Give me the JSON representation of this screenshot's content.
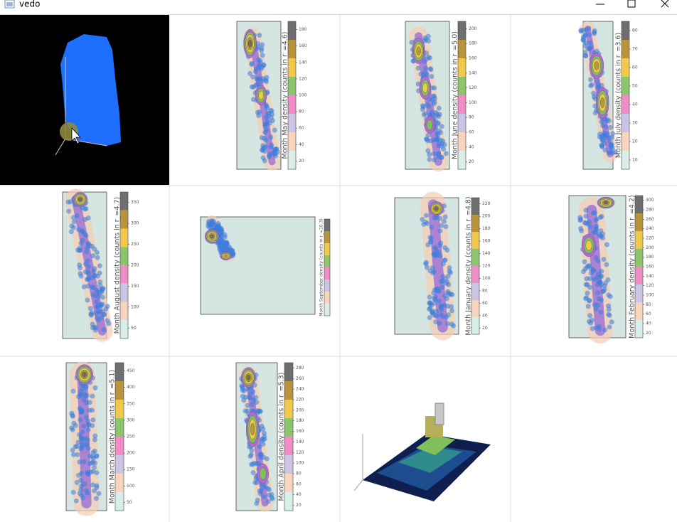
{
  "window": {
    "title": "vedo"
  },
  "panels": [
    {
      "colorbar_title": "Month May density (counts in r_=4.6)",
      "ticks": [
        "180",
        "160",
        "140",
        "120",
        "100",
        "80",
        "60",
        "40",
        "20"
      ]
    },
    {
      "colorbar_title": "Month June density (counts in r_=5.0)",
      "ticks": [
        "200",
        "180",
        "160",
        "140",
        "120",
        "100",
        "80",
        "60",
        "40",
        "20"
      ]
    },
    {
      "colorbar_title": "Month July density (counts in r_=3.6)",
      "ticks": [
        "80",
        "70",
        "60",
        "50",
        "40",
        "30",
        "20",
        "10"
      ]
    },
    {
      "colorbar_title": "Month August density (counts in r_=4.7)",
      "ticks": [
        "350",
        "300",
        "250",
        "200",
        "150",
        "100",
        "50"
      ]
    },
    {
      "colorbar_title": "Month September density (counts in r_=10.3)",
      "ticks": []
    },
    {
      "colorbar_title": "Month January density (counts in r_=4.8)",
      "ticks": [
        "220",
        "200",
        "180",
        "160",
        "140",
        "120",
        "100",
        "80",
        "60",
        "40",
        "20"
      ]
    },
    {
      "colorbar_title": "Month February density (counts in r_=4.2)",
      "ticks": [
        "300",
        "280",
        "260",
        "240",
        "220",
        "200",
        "180",
        "160",
        "140",
        "120",
        "100",
        "80",
        "60",
        "40",
        "20"
      ]
    },
    {
      "colorbar_title": "Month March density (counts in r_=5.1)",
      "ticks": [
        "450",
        "400",
        "350",
        "300",
        "250",
        "200",
        "150",
        "100",
        "50"
      ]
    },
    {
      "colorbar_title": "Month April density (counts in r_=5.3)",
      "ticks": [
        "280",
        "260",
        "240",
        "220",
        "200",
        "180",
        "160",
        "140",
        "120",
        "100",
        "80",
        "60",
        "40",
        "20"
      ]
    }
  ]
}
